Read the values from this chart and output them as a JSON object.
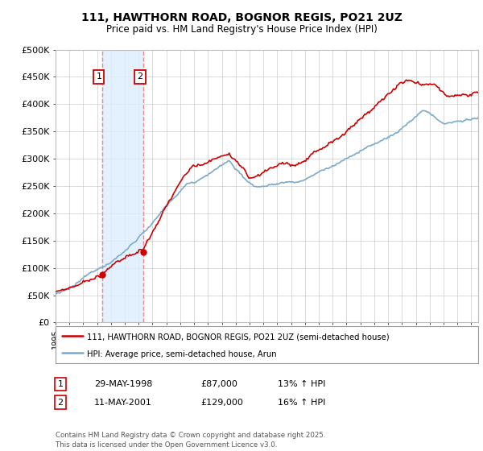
{
  "title1": "111, HAWTHORN ROAD, BOGNOR REGIS, PO21 2UZ",
  "title2": "Price paid vs. HM Land Registry's House Price Index (HPI)",
  "legend1": "111, HAWTHORN ROAD, BOGNOR REGIS, PO21 2UZ (semi-detached house)",
  "legend2": "HPI: Average price, semi-detached house, Arun",
  "footer": "Contains HM Land Registry data © Crown copyright and database right 2025.\nThis data is licensed under the Open Government Licence v3.0.",
  "sale1_date": "29-MAY-1998",
  "sale1_price": "£87,000",
  "sale1_hpi": "13% ↑ HPI",
  "sale1_year": 1998.38,
  "sale1_value": 87000,
  "sale2_date": "11-MAY-2001",
  "sale2_price": "£129,000",
  "sale2_hpi": "16% ↑ HPI",
  "sale2_year": 2001.36,
  "sale2_value": 129000,
  "line_color_red": "#cc0000",
  "line_color_blue": "#7aaacc",
  "vline_color": "#ee8888",
  "shade_color": "#ddeeff",
  "ylim": [
    0,
    500000
  ],
  "yticks": [
    0,
    50000,
    100000,
    150000,
    200000,
    250000,
    300000,
    350000,
    400000,
    450000,
    500000
  ],
  "bg_color": "#ffffff",
  "grid_color": "#cccccc",
  "xmin": 1995,
  "xmax": 2025.5
}
